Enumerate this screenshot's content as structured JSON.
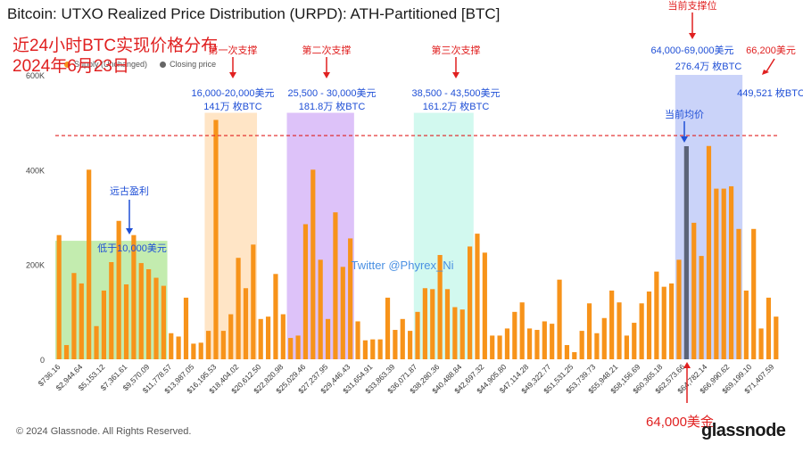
{
  "title": "Bitcoin: UTXO Realized Price Distribution (URPD): ATH-Partitioned [BTC]",
  "overlay_title_line1": "近24小时BTC实现价格分布",
  "overlay_title_line2": "2024年6月23日",
  "legend": [
    {
      "label": "Supply (Unchanged)",
      "color": "#f7931a"
    },
    {
      "label": "Closing price",
      "color": "#666666"
    }
  ],
  "copyright": "© 2024 Glassnode. All Rights Reserved.",
  "brand": "glassnode",
  "watermark": "Twitter @Phyrex_Ni",
  "annotations": {
    "support1_title": "第一次支撑",
    "support1_range": "16,000-20,000美元",
    "support1_amount": "141万 枚BTC",
    "support2_title": "第二次支撑",
    "support2_range": "25,500 - 30,000美元",
    "support2_amount": "181.8万 枚BTC",
    "support3_title": "第三次支撑",
    "support3_range": "38,500 - 43,500美元",
    "support3_amount": "161.2万 枚BTC",
    "current_support_title": "当前支撑位",
    "current_support_range": "64,000-69,000美元",
    "current_support_amount": "276.4万 枚BTC",
    "price_66200": "66,200美元",
    "amount_66200": "449,521 枚BTC",
    "avg_price": "当前均价",
    "ancient_profit": "远古盈利",
    "below_10000": "低于10,000美元",
    "bottom_64000": "64,000美金"
  },
  "chart_data": {
    "type": "bar",
    "title": "Bitcoin: UTXO Realized Price Distribution (URPD): ATH-Partitioned [BTC]",
    "yticks": [
      "0",
      "200K",
      "400K",
      "600K"
    ],
    "ylim": [
      0,
      600000
    ],
    "xtick_labels": [
      "$736.16",
      "$2,944.64",
      "$5,153.12",
      "$7,361.61",
      "$9,570.09",
      "$11,778.57",
      "$13,987.05",
      "$16,195.53",
      "$18,404.02",
      "$20,612.50",
      "$22,820.98",
      "$25,029.46",
      "$27,237.95",
      "$29,446.43",
      "$31,654.91",
      "$33,863.39",
      "$36,071.87",
      "$38,280.36",
      "$40,488.84",
      "$42,697.32",
      "$44,905.80",
      "$47,114.28",
      "$49,322.77",
      "$51,531.25",
      "$53,739.73",
      "$55,948.21",
      "$58,156.69",
      "$60,365.18",
      "$62,573.66",
      "$64,782.14",
      "$66,990.62",
      "$69,199.10",
      "$71,407.59"
    ],
    "values": [
      262000,
      30000,
      182000,
      160000,
      400000,
      70000,
      145000,
      205000,
      292000,
      158000,
      262000,
      203000,
      190000,
      172000,
      155000,
      55000,
      48000,
      130000,
      33000,
      35000,
      60000,
      505000,
      60000,
      95000,
      214000,
      150000,
      242000,
      85000,
      90000,
      180000,
      95000,
      45000,
      50000,
      285000,
      400000,
      210000,
      85000,
      310000,
      195000,
      255000,
      80000,
      40000,
      42000,
      42000,
      130000,
      62000,
      85000,
      60000,
      100000,
      150000,
      148000,
      220000,
      148000,
      110000,
      105000,
      238000,
      265000,
      225000,
      50000,
      50000,
      65000,
      100000,
      120000,
      65000,
      62000,
      80000,
      75000,
      168000,
      30000,
      15000,
      60000,
      118000,
      55000,
      87000,
      145000,
      120000,
      50000,
      77000,
      118000,
      143000,
      185000,
      153000,
      160000,
      210000,
      449521,
      288000,
      218000,
      450000,
      360000,
      360000,
      365000,
      275000,
      145000,
      275000,
      65000,
      130000,
      90000
    ],
    "highlight_index": 84,
    "reference_line_value": 472000,
    "shaded_regions": [
      {
        "from_index": 0,
        "to_index": 14,
        "top_value": 250000,
        "color": "#9be07a"
      },
      {
        "from_index": 20,
        "to_index": 26,
        "top_value": 520000,
        "color": "#ffd3a0"
      },
      {
        "from_index": 31,
        "to_index": 39,
        "top_value": 520000,
        "color": "#c79af5"
      },
      {
        "from_index": 48,
        "to_index": 55,
        "top_value": 520000,
        "color": "#b4f5e4"
      },
      {
        "from_index": 83,
        "to_index": 91,
        "top_value": 600000,
        "color": "#a7b6f5"
      }
    ],
    "bar_color": "#f7931a",
    "highlight_color": "#5b6378"
  }
}
